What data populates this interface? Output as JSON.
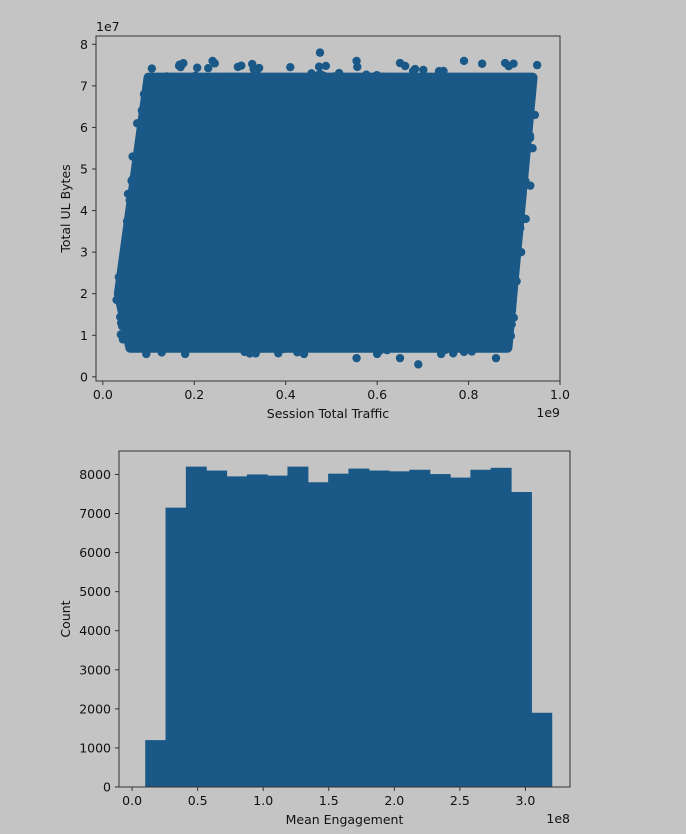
{
  "colors": {
    "background": "#c4c4c4",
    "marker": "#1a5987",
    "axis": "#333333",
    "text": "#111111"
  },
  "chart_data": [
    {
      "type": "scatter",
      "xlabel": "Session Total Traffic",
      "ylabel": "Total UL Bytes",
      "x_offset_label": "1e9",
      "y_offset_label": "1e7",
      "xlim": [
        -0.015,
        1.0
      ],
      "ylim": [
        -0.1,
        8.2
      ],
      "x_ticks": [
        0.0,
        0.2,
        0.4,
        0.6,
        0.8,
        1.0
      ],
      "x_tick_labels": [
        "0.0",
        "0.2",
        "0.4",
        "0.6",
        "0.8",
        "1.0"
      ],
      "y_ticks": [
        0,
        1,
        2,
        3,
        4,
        5,
        6,
        7,
        8
      ],
      "y_tick_labels": [
        "0",
        "1",
        "2",
        "3",
        "4",
        "5",
        "6",
        "7",
        "8"
      ],
      "grid": false,
      "approx_region": {
        "x_min": 0.03,
        "x_max": 0.955,
        "y_min": 0.3,
        "y_max": 7.8,
        "note_shape": "dense parallelogram cloud filling x 0.03-0.955e9, y 0.3-7.8e7"
      },
      "points": [
        [
          0.475,
          7.8
        ],
        [
          0.24,
          7.6
        ],
        [
          0.41,
          7.45
        ],
        [
          0.555,
          7.6
        ],
        [
          0.65,
          7.55
        ],
        [
          0.79,
          7.6
        ],
        [
          0.95,
          7.5
        ],
        [
          0.17,
          7.45
        ],
        [
          0.88,
          7.55
        ],
        [
          0.33,
          7.4
        ],
        [
          0.03,
          1.85
        ],
        [
          0.04,
          1.3
        ],
        [
          0.035,
          2.4
        ],
        [
          0.05,
          3.2
        ],
        [
          0.055,
          4.4
        ],
        [
          0.065,
          5.3
        ],
        [
          0.075,
          6.1
        ],
        [
          0.09,
          6.8
        ],
        [
          0.945,
          6.3
        ],
        [
          0.94,
          5.5
        ],
        [
          0.935,
          4.6
        ],
        [
          0.925,
          3.8
        ],
        [
          0.915,
          3.0
        ],
        [
          0.905,
          2.3
        ],
        [
          0.895,
          1.6
        ],
        [
          0.88,
          1.0
        ],
        [
          0.69,
          0.3
        ],
        [
          0.555,
          0.45
        ],
        [
          0.6,
          0.55
        ],
        [
          0.65,
          0.45
        ],
        [
          0.86,
          0.45
        ],
        [
          0.18,
          0.55
        ],
        [
          0.095,
          0.55
        ],
        [
          0.31,
          0.6
        ],
        [
          0.44,
          0.55
        ],
        [
          0.74,
          0.55
        ],
        [
          0.79,
          0.6
        ],
        [
          0.5,
          0.7
        ],
        [
          0.25,
          0.75
        ],
        [
          0.12,
          0.8
        ]
      ]
    },
    {
      "type": "bar",
      "subtype": "histogram",
      "xlabel": "Mean Engagement",
      "ylabel": "Count",
      "x_offset_label": "1e8",
      "xlim": [
        -0.1,
        3.34
      ],
      "ylim": [
        0,
        8600
      ],
      "x_ticks": [
        0.0,
        0.5,
        1.0,
        1.5,
        2.0,
        2.5,
        3.0
      ],
      "x_tick_labels": [
        "0.0",
        "0.5",
        "1.0",
        "1.5",
        "2.0",
        "2.5",
        "3.0"
      ],
      "y_ticks": [
        0,
        1000,
        2000,
        3000,
        4000,
        5000,
        6000,
        7000,
        8000
      ],
      "y_tick_labels": [
        "0",
        "1000",
        "2000",
        "3000",
        "4000",
        "5000",
        "6000",
        "7000",
        "8000"
      ],
      "grid": false,
      "bin_edges": [
        0.1,
        0.255,
        0.41,
        0.565,
        0.72,
        0.875,
        1.03,
        1.185,
        1.34,
        1.495,
        1.65,
        1.805,
        1.96,
        2.115,
        2.27,
        2.425,
        2.58,
        2.735,
        2.89,
        3.045,
        3.2
      ],
      "values": [
        1200,
        7150,
        8200,
        8100,
        7950,
        8000,
        7970,
        8200,
        7800,
        8020,
        8150,
        8100,
        8080,
        8120,
        8010,
        7920,
        8120,
        8170,
        7550,
        1900
      ]
    }
  ]
}
